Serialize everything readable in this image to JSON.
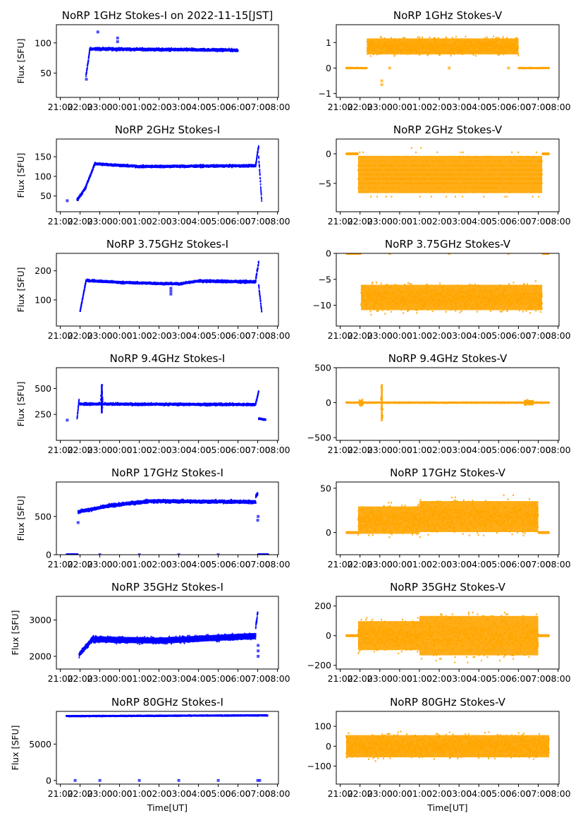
{
  "figure": {
    "shared_xlabel": "Time[UT]",
    "shared_ylabel": "Flux [SFU]"
  },
  "chart_data": [
    {
      "id": "1ghz-i",
      "type": "scatter",
      "title": "NoRP 1GHz Stokes-I on 2022-11-15[JST]",
      "ylabel": "Flux [SFU]",
      "xlabel": "",
      "color": "#0000ff",
      "x_ticks": [
        "21:00",
        "22:00",
        "23:00",
        "00:00",
        "01:00",
        "02:00",
        "03:00",
        "04:00",
        "05:00",
        "06:00",
        "07:00",
        "08:00"
      ],
      "xlim_hours_from_2100": [
        -0.2,
        11.05
      ],
      "ylim": [
        10,
        130
      ],
      "y_ticks": [
        50,
        100
      ],
      "segments": [
        {
          "x": [
            1.3,
            1.5
          ],
          "y": [
            45,
            90
          ],
          "spread": 4
        },
        {
          "x": [
            1.5,
            9.0
          ],
          "y": [
            90,
            88
          ],
          "spread": 3
        }
      ],
      "outliers": [
        [
          1.9,
          118
        ],
        [
          2.9,
          108
        ],
        [
          2.9,
          102
        ],
        [
          1.32,
          40
        ]
      ]
    },
    {
      "id": "1ghz-v",
      "type": "scatter",
      "title": "NoRP 1GHz Stokes-V",
      "ylabel": "",
      "xlabel": "",
      "color": "#ffa500",
      "x_ticks": [
        "21:00",
        "22:00",
        "23:00",
        "00:00",
        "01:00",
        "02:00",
        "03:00",
        "04:00",
        "05:00",
        "06:00",
        "07:00",
        "08:00"
      ],
      "xlim_hours_from_2100": [
        -0.2,
        11.05
      ],
      "ylim": [
        -1.15,
        1.7
      ],
      "y_ticks": [
        -1,
        0,
        1
      ],
      "segments": [
        {
          "x": [
            0.3,
            1.35
          ],
          "y": [
            0,
            0
          ],
          "spread": 0.02
        },
        {
          "x": [
            1.35,
            9.0
          ],
          "y": [
            0.85,
            0.85
          ],
          "spread": 0.45
        },
        {
          "x": [
            9.0,
            10.55
          ],
          "y": [
            0,
            0
          ],
          "spread": 0.02
        }
      ],
      "outliers": [
        [
          2.5,
          0
        ],
        [
          5.5,
          0
        ],
        [
          8.5,
          0
        ],
        [
          2.1,
          -0.5
        ],
        [
          2.1,
          -0.65
        ]
      ]
    },
    {
      "id": "2ghz-i",
      "type": "scatter",
      "title": "NoRP 2GHz Stokes-I",
      "ylabel": "Flux [SFU]",
      "xlabel": "",
      "color": "#0000ff",
      "x_ticks": [
        "21:00",
        "22:00",
        "23:00",
        "00:00",
        "01:00",
        "02:00",
        "03:00",
        "04:00",
        "05:00",
        "06:00",
        "07:00",
        "08:00"
      ],
      "xlim_hours_from_2100": [
        -0.2,
        11.05
      ],
      "ylim": [
        10,
        195
      ],
      "y_ticks": [
        50,
        100,
        150
      ],
      "segments": [
        {
          "x": [
            0.85,
            1.3
          ],
          "y": [
            40,
            72
          ],
          "spread": 5
        },
        {
          "x": [
            1.3,
            1.75
          ],
          "y": [
            75,
            132
          ],
          "spread": 4
        },
        {
          "x": [
            1.75,
            4.0
          ],
          "y": [
            132,
            125
          ],
          "spread": 4
        },
        {
          "x": [
            4.0,
            9.9
          ],
          "y": [
            125,
            127
          ],
          "spread": 4
        },
        {
          "x": [
            9.9,
            10.05
          ],
          "y": [
            130,
            178
          ],
          "spread": 8
        },
        {
          "x": [
            10.05,
            10.2
          ],
          "y": [
            150,
            40
          ],
          "spread": 6
        }
      ],
      "outliers": [
        [
          0.35,
          38
        ]
      ]
    },
    {
      "id": "2ghz-v",
      "type": "scatter",
      "title": "NoRP 2GHz Stokes-V",
      "ylabel": "",
      "xlabel": "",
      "color": "#ffa500",
      "x_ticks": [
        "21:00",
        "22:00",
        "23:00",
        "00:00",
        "01:00",
        "02:00",
        "03:00",
        "04:00",
        "05:00",
        "06:00",
        "07:00",
        "08:00"
      ],
      "xlim_hours_from_2100": [
        -0.2,
        11.05
      ],
      "ylim": [
        -9.8,
        2.5
      ],
      "y_ticks": [
        -5,
        0
      ],
      "segments": [
        {
          "x": [
            0.3,
            0.9
          ],
          "y": [
            0,
            0
          ],
          "spread": 0
        },
        {
          "x": [
            0.9,
            10.2
          ],
          "y": [
            -3.5,
            -3.5
          ],
          "spread": 4.5,
          "quantized": 0.75
        },
        {
          "x": [
            10.2,
            10.55
          ],
          "y": [
            0,
            0
          ],
          "spread": 0
        }
      ],
      "outliers": []
    },
    {
      "id": "375ghz-i",
      "type": "scatter",
      "title": "NoRP 3.75GHz Stokes-I",
      "ylabel": "Flux [SFU]",
      "xlabel": "",
      "color": "#0000ff",
      "x_ticks": [
        "21:00",
        "22:00",
        "23:00",
        "00:00",
        "01:00",
        "02:00",
        "03:00",
        "04:00",
        "05:00",
        "06:00",
        "07:00",
        "08:00"
      ],
      "xlim_hours_from_2100": [
        -0.2,
        11.05
      ],
      "ylim": [
        10,
        260
      ],
      "y_ticks": [
        100,
        200
      ],
      "segments": [
        {
          "x": [
            1.0,
            1.3
          ],
          "y": [
            60,
            165
          ],
          "spread": 5
        },
        {
          "x": [
            1.3,
            3.0
          ],
          "y": [
            167,
            160
          ],
          "spread": 5
        },
        {
          "x": [
            3.0,
            6.0
          ],
          "y": [
            160,
            155
          ],
          "spread": 5
        },
        {
          "x": [
            6.0,
            7.0
          ],
          "y": [
            155,
            165
          ],
          "spread": 5
        },
        {
          "x": [
            7.0,
            9.9
          ],
          "y": [
            165,
            162
          ],
          "spread": 6
        },
        {
          "x": [
            9.9,
            10.05
          ],
          "y": [
            170,
            230
          ],
          "spread": 10
        },
        {
          "x": [
            10.05,
            10.2
          ],
          "y": [
            150,
            60
          ],
          "spread": 6
        }
      ],
      "outliers": [
        [
          5.6,
          120
        ],
        [
          5.6,
          130
        ],
        [
          5.6,
          140
        ]
      ]
    },
    {
      "id": "375ghz-v",
      "type": "scatter",
      "title": "NoRP 3.75GHz Stokes-V",
      "ylabel": "",
      "xlabel": "",
      "color": "#ffa500",
      "x_ticks": [
        "21:00",
        "22:00",
        "23:00",
        "00:00",
        "01:00",
        "02:00",
        "03:00",
        "04:00",
        "05:00",
        "06:00",
        "07:00",
        "08:00"
      ],
      "xlim_hours_from_2100": [
        -0.2,
        11.05
      ],
      "ylim": [
        -14,
        0
      ],
      "y_ticks": [
        -10,
        -5,
        0
      ],
      "segments": [
        {
          "x": [
            0.3,
            1.05
          ],
          "y": [
            0,
            0
          ],
          "spread": 0
        },
        {
          "x": [
            1.05,
            10.2
          ],
          "y": [
            -8.5,
            -8.5
          ],
          "spread": 3.5
        },
        {
          "x": [
            10.2,
            10.55
          ],
          "y": [
            0,
            0
          ],
          "spread": 0
        }
      ],
      "outliers": [
        [
          2.5,
          0
        ],
        [
          5.5,
          0
        ],
        [
          8.5,
          0
        ]
      ]
    },
    {
      "id": "94ghz-i",
      "type": "scatter",
      "title": "NoRP 9.4GHz Stokes-I",
      "ylabel": "Flux [SFU]",
      "xlabel": "",
      "color": "#0000ff",
      "x_ticks": [
        "21:00",
        "22:00",
        "23:00",
        "00:00",
        "01:00",
        "02:00",
        "03:00",
        "04:00",
        "05:00",
        "06:00",
        "07:00",
        "08:00"
      ],
      "xlim_hours_from_2100": [
        -0.2,
        11.05
      ],
      "ylim": [
        0,
        700
      ],
      "y_ticks": [
        250,
        500
      ],
      "segments": [
        {
          "x": [
            0.85,
            0.95
          ],
          "y": [
            210,
            400
          ],
          "spread": 20
        },
        {
          "x": [
            0.95,
            9.9
          ],
          "y": [
            350,
            345
          ],
          "spread": 15
        },
        {
          "x": [
            2.05,
            2.15
          ],
          "y": [
            400,
            400
          ],
          "spread": 200
        },
        {
          "x": [
            9.9,
            10.05
          ],
          "y": [
            360,
            470
          ],
          "spread": 20
        },
        {
          "x": [
            10.05,
            10.4
          ],
          "y": [
            210,
            200
          ],
          "spread": 10
        }
      ],
      "outliers": [
        [
          0.35,
          195
        ]
      ]
    },
    {
      "id": "94ghz-v",
      "type": "scatter",
      "title": "NoRP 9.4GHz Stokes-V",
      "ylabel": "",
      "xlabel": "",
      "color": "#ffa500",
      "x_ticks": [
        "21:00",
        "22:00",
        "23:00",
        "00:00",
        "01:00",
        "02:00",
        "03:00",
        "04:00",
        "05:00",
        "06:00",
        "07:00",
        "08:00"
      ],
      "xlim_hours_from_2100": [
        -0.2,
        11.05
      ],
      "ylim": [
        -540,
        500
      ],
      "y_ticks": [
        -500,
        0,
        500
      ],
      "segments": [
        {
          "x": [
            0.3,
            10.55
          ],
          "y": [
            0,
            0
          ],
          "spread": 8
        },
        {
          "x": [
            2.05,
            2.15
          ],
          "y": [
            0,
            0
          ],
          "spread": 380
        },
        {
          "x": [
            0.95,
            1.15
          ],
          "y": [
            0,
            0
          ],
          "spread": 60
        },
        {
          "x": [
            9.3,
            9.75
          ],
          "y": [
            0,
            0
          ],
          "spread": 50
        }
      ],
      "outliers": []
    },
    {
      "id": "17ghz-i",
      "type": "scatter",
      "title": "NoRP 17GHz Stokes-I",
      "ylabel": "Flux [SFU]",
      "xlabel": "",
      "color": "#0000ff",
      "x_ticks": [
        "21:00",
        "22:00",
        "23:00",
        "00:00",
        "01:00",
        "02:00",
        "03:00",
        "04:00",
        "05:00",
        "06:00",
        "07:00",
        "08:00"
      ],
      "xlim_hours_from_2100": [
        -0.2,
        11.05
      ],
      "ylim": [
        0,
        950
      ],
      "y_ticks": [
        0,
        500
      ],
      "segments": [
        {
          "x": [
            0.9,
            2.5
          ],
          "y": [
            560,
            640
          ],
          "spread": 30
        },
        {
          "x": [
            2.5,
            4.5
          ],
          "y": [
            640,
            700
          ],
          "spread": 30
        },
        {
          "x": [
            4.5,
            9.9
          ],
          "y": [
            700,
            690
          ],
          "spread": 30
        },
        {
          "x": [
            9.9,
            10.0
          ],
          "y": [
            760,
            800
          ],
          "spread": 40
        },
        {
          "x": [
            0.3,
            0.9
          ],
          "y": [
            0,
            0
          ],
          "spread": 0
        },
        {
          "x": [
            10.0,
            10.55
          ],
          "y": [
            0,
            0
          ],
          "spread": 0
        }
      ],
      "outliers": [
        [
          0.9,
          420
        ],
        [
          10.0,
          450
        ],
        [
          10.02,
          500
        ],
        [
          2.0,
          0
        ],
        [
          4.0,
          0
        ],
        [
          6.0,
          0
        ],
        [
          8.0,
          0
        ]
      ]
    },
    {
      "id": "17ghz-v",
      "type": "scatter",
      "title": "NoRP 17GHz Stokes-V",
      "ylabel": "",
      "xlabel": "",
      "color": "#ffa500",
      "x_ticks": [
        "21:00",
        "22:00",
        "23:00",
        "00:00",
        "01:00",
        "02:00",
        "03:00",
        "04:00",
        "05:00",
        "06:00",
        "07:00",
        "08:00"
      ],
      "xlim_hours_from_2100": [
        -0.2,
        11.05
      ],
      "ylim": [
        -25,
        57
      ],
      "y_ticks": [
        0,
        50
      ],
      "segments": [
        {
          "x": [
            0.3,
            0.9
          ],
          "y": [
            0,
            0
          ],
          "spread": 0
        },
        {
          "x": [
            0.9,
            4.0
          ],
          "y": [
            14,
            14
          ],
          "spread": 22
        },
        {
          "x": [
            4.0,
            10.0
          ],
          "y": [
            18,
            18
          ],
          "spread": 25
        },
        {
          "x": [
            10.0,
            10.55
          ],
          "y": [
            0,
            0
          ],
          "spread": 0
        }
      ],
      "outliers": []
    },
    {
      "id": "35ghz-i",
      "type": "scatter",
      "title": "NoRP 35GHz Stokes-I",
      "ylabel": "Flux [SFU]",
      "xlabel": "",
      "color": "#0000ff",
      "x_ticks": [
        "21:00",
        "22:00",
        "23:00",
        "00:00",
        "01:00",
        "02:00",
        "03:00",
        "04:00",
        "05:00",
        "06:00",
        "07:00",
        "08:00"
      ],
      "xlim_hours_from_2100": [
        -0.2,
        11.05
      ],
      "ylim": [
        1650,
        3650
      ],
      "y_ticks": [
        2000,
        3000
      ],
      "segments": [
        {
          "x": [
            0.95,
            1.6
          ],
          "y": [
            2050,
            2450
          ],
          "spread": 100
        },
        {
          "x": [
            1.6,
            5.0
          ],
          "y": [
            2470,
            2430
          ],
          "spread": 120
        },
        {
          "x": [
            5.0,
            9.9
          ],
          "y": [
            2430,
            2560
          ],
          "spread": 120
        },
        {
          "x": [
            9.9,
            10.0
          ],
          "y": [
            2800,
            3200
          ],
          "spread": 100
        }
      ],
      "outliers": [
        [
          10.02,
          2000
        ],
        [
          10.02,
          2150
        ],
        [
          10.02,
          2300
        ]
      ]
    },
    {
      "id": "35ghz-v",
      "type": "scatter",
      "title": "NoRP 35GHz Stokes-V",
      "ylabel": "",
      "xlabel": "",
      "color": "#ffa500",
      "x_ticks": [
        "21:00",
        "22:00",
        "23:00",
        "00:00",
        "01:00",
        "02:00",
        "03:00",
        "04:00",
        "05:00",
        "06:00",
        "07:00",
        "08:00"
      ],
      "xlim_hours_from_2100": [
        -0.2,
        11.05
      ],
      "ylim": [
        -225,
        265
      ],
      "y_ticks": [
        -200,
        0,
        200
      ],
      "segments": [
        {
          "x": [
            0.3,
            0.9
          ],
          "y": [
            0,
            0
          ],
          "spread": 0
        },
        {
          "x": [
            0.9,
            4.0
          ],
          "y": [
            0,
            0
          ],
          "spread": 140,
          "quantized": 12
        },
        {
          "x": [
            4.0,
            10.0
          ],
          "y": [
            0,
            0
          ],
          "spread": 190,
          "quantized": 12
        },
        {
          "x": [
            10.0,
            10.55
          ],
          "y": [
            0,
            0
          ],
          "spread": 0
        }
      ],
      "outliers": []
    },
    {
      "id": "80ghz-i",
      "type": "scatter",
      "title": "NoRP 80GHz Stokes-I",
      "ylabel": "Flux [SFU]",
      "xlabel": "Time[UT]",
      "color": "#0000ff",
      "x_ticks": [
        "21:00",
        "22:00",
        "23:00",
        "00:00",
        "01:00",
        "02:00",
        "03:00",
        "04:00",
        "05:00",
        "06:00",
        "07:00",
        "08:00"
      ],
      "xlim_hours_from_2100": [
        -0.2,
        11.05
      ],
      "ylim": [
        -500,
        9500
      ],
      "y_ticks": [
        0,
        5000
      ],
      "segments": [
        {
          "x": [
            0.3,
            10.5
          ],
          "y": [
            8850,
            8950
          ],
          "spread": 80
        }
      ],
      "outliers": [
        [
          0.75,
          0
        ],
        [
          2.0,
          0
        ],
        [
          4.0,
          0
        ],
        [
          6.0,
          0
        ],
        [
          8.0,
          0
        ],
        [
          10.0,
          0
        ],
        [
          10.1,
          0
        ]
      ]
    },
    {
      "id": "80ghz-v",
      "type": "scatter",
      "title": "NoRP 80GHz Stokes-V",
      "ylabel": "",
      "xlabel": "Time[UT]",
      "color": "#ffa500",
      "x_ticks": [
        "21:00",
        "22:00",
        "23:00",
        "00:00",
        "01:00",
        "02:00",
        "03:00",
        "04:00",
        "05:00",
        "06:00",
        "07:00",
        "08:00"
      ],
      "xlim_hours_from_2100": [
        -0.2,
        11.05
      ],
      "ylim": [
        -190,
        175
      ],
      "y_ticks": [
        -100,
        0,
        100
      ],
      "segments": [
        {
          "x": [
            0.3,
            10.55
          ],
          "y": [
            0,
            0
          ],
          "spread": 80
        }
      ],
      "outliers": []
    }
  ]
}
